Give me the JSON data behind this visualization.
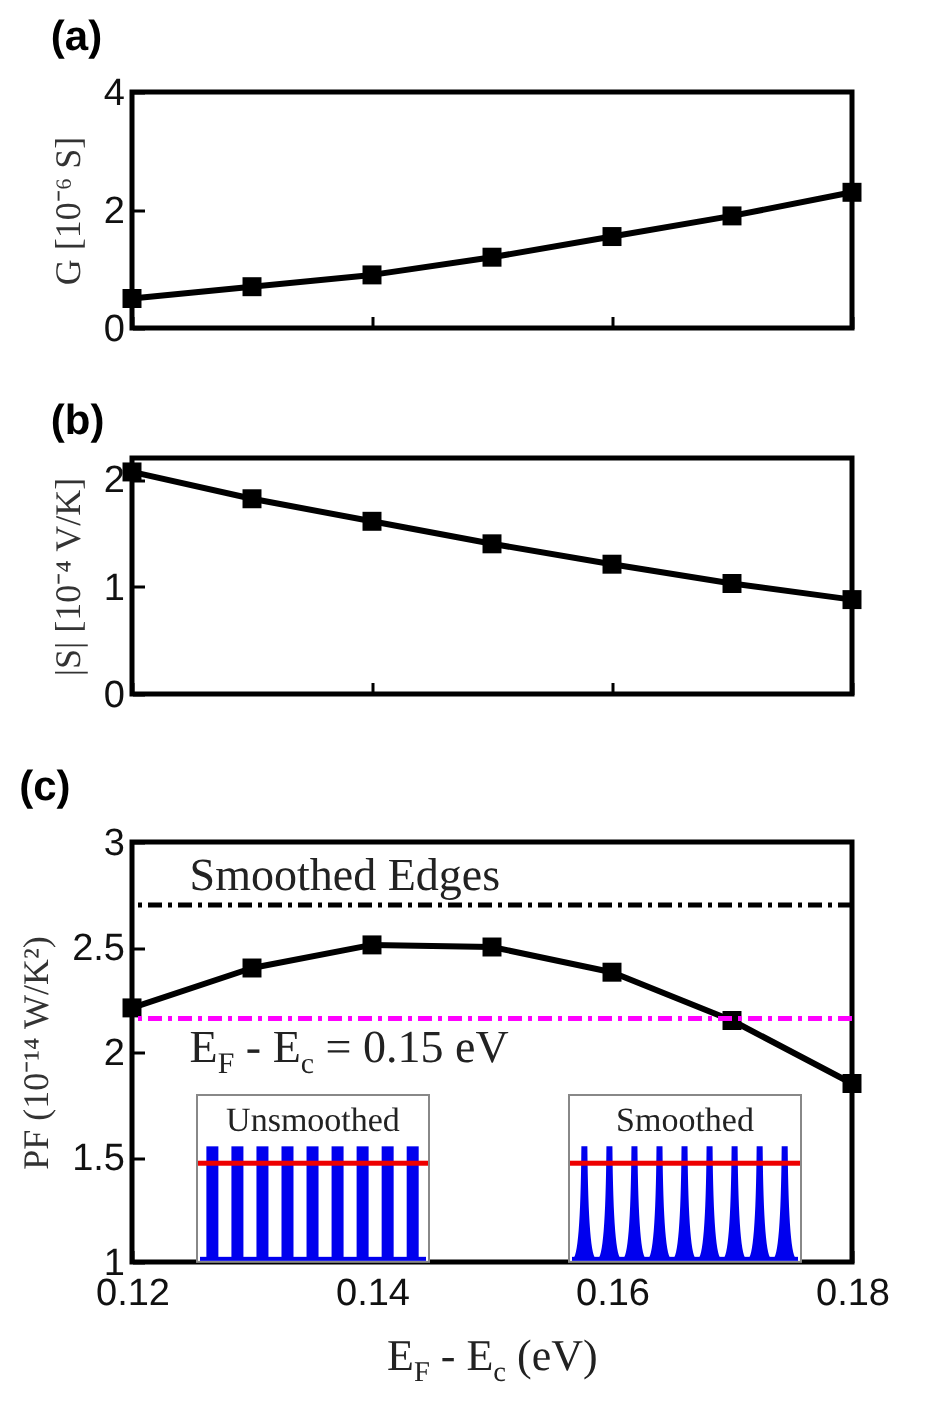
{
  "chart_data": [
    {
      "type": "line",
      "title": "(a)",
      "ylabel": "G [10⁻⁶ S]",
      "x": [
        0.12,
        0.13,
        0.14,
        0.15,
        0.16,
        0.17,
        0.18
      ],
      "series": [
        {
          "color": "#000000",
          "values": [
            0.5,
            0.7,
            0.9,
            1.2,
            1.55,
            1.9,
            2.3
          ]
        }
      ],
      "xlim": [
        0.12,
        0.18
      ],
      "xticks": [
        0.12,
        0.14,
        0.16,
        0.18
      ],
      "ylim": [
        0,
        4
      ],
      "yticks": [
        0,
        2,
        4
      ],
      "tick_labels": "y",
      "marker": "square",
      "line_style": "solid",
      "grid": false
    },
    {
      "type": "line",
      "title": "(b)",
      "ylabel": "|S| [10⁻⁴ V/K]",
      "x": [
        0.12,
        0.13,
        0.14,
        0.15,
        0.16,
        0.17,
        0.18
      ],
      "series": [
        {
          "color": "#000000",
          "values": [
            2.07,
            1.82,
            1.61,
            1.4,
            1.21,
            1.03,
            0.88
          ]
        }
      ],
      "xlim": [
        0.12,
        0.18
      ],
      "xticks": [
        0.12,
        0.14,
        0.16,
        0.18
      ],
      "ylim": [
        0,
        2.2
      ],
      "yticks": [
        0,
        1,
        2
      ],
      "tick_labels": "y",
      "marker": "square",
      "line_style": "solid",
      "grid": false
    },
    {
      "type": "line",
      "title": "(c)",
      "xlabel": "E$_{F}$ - E$_{c}$ (eV)",
      "ylabel": "PF (10⁻¹⁴ W/K²)",
      "x": [
        0.12,
        0.13,
        0.14,
        0.15,
        0.16,
        0.17,
        0.18
      ],
      "series": [
        {
          "color": "#000000",
          "values": [
            2.21,
            2.4,
            2.51,
            2.5,
            2.38,
            2.15,
            1.85
          ]
        }
      ],
      "xlim": [
        0.12,
        0.18
      ],
      "xticks": [
        0.12,
        0.14,
        0.16,
        0.18
      ],
      "ylim": [
        1,
        3
      ],
      "yticks": [
        1,
        1.5,
        2,
        2.5,
        3
      ],
      "marker": "square",
      "line_style": "solid",
      "grid": false,
      "ref_lines": [
        {
          "axis": "y",
          "value": 2.7,
          "color": "#000000",
          "line_style": "dashdot"
        },
        {
          "axis": "y",
          "value": 2.16,
          "color": "#ff00ff",
          "line_style": "dashdot"
        }
      ],
      "annotations": [
        "Smoothed Edges",
        "E$_{F}$ - E$_{c}$ = 0.15 eV",
        "Unsmoothed",
        "Smoothed"
      ]
    }
  ]
}
